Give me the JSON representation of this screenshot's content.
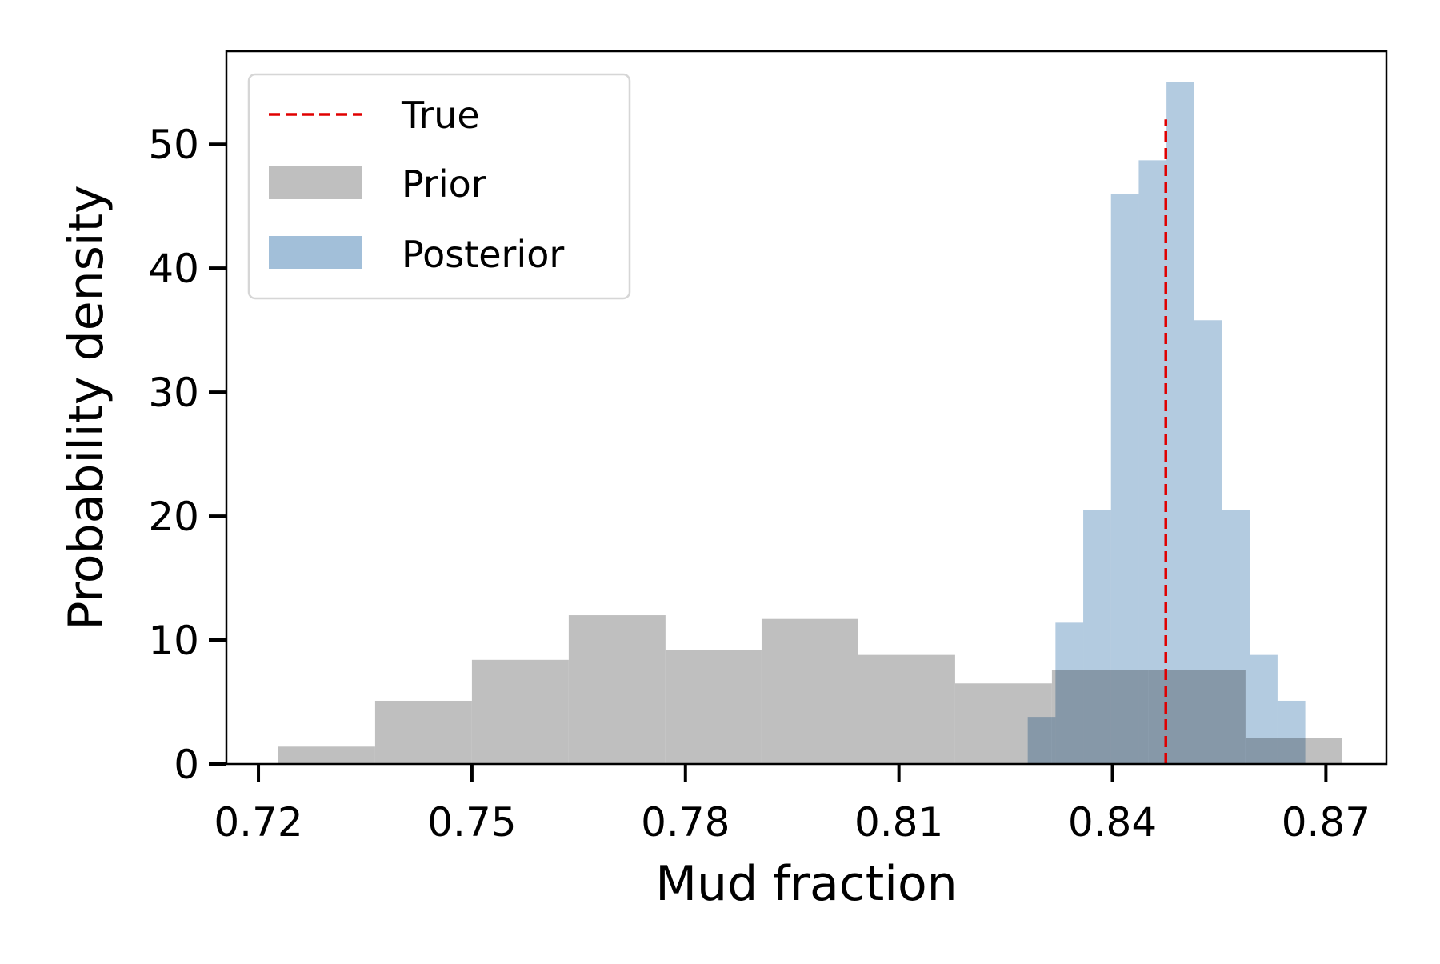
{
  "chart_data": {
    "type": "bar",
    "title": "",
    "xlabel": "Mud fraction",
    "ylabel": "Probability density",
    "xlim": [
      0.7155,
      0.8785
    ],
    "ylim": [
      0,
      57.5
    ],
    "xticks": [
      0.72,
      0.75,
      0.78,
      0.81,
      0.84,
      0.87
    ],
    "xtick_labels": [
      "0.72",
      "0.75",
      "0.78",
      "0.81",
      "0.84",
      "0.87"
    ],
    "yticks": [
      0,
      10,
      20,
      30,
      40,
      50
    ],
    "ytick_labels": [
      "0",
      "10",
      "20",
      "30",
      "40",
      "50"
    ],
    "grid": false,
    "legend_position": "top-left",
    "true_value": 0.8475,
    "series": [
      {
        "name": "Prior",
        "kind": "histogram",
        "color": "#bfbfbf",
        "bins": [
          [
            0.7228,
            0.7364,
            1.4
          ],
          [
            0.7364,
            0.75,
            5.1
          ],
          [
            0.75,
            0.7636,
            8.4
          ],
          [
            0.7636,
            0.7772,
            12.0
          ],
          [
            0.7772,
            0.7907,
            9.2
          ],
          [
            0.7907,
            0.8043,
            11.7
          ],
          [
            0.8043,
            0.8179,
            8.8
          ],
          [
            0.8179,
            0.8315,
            6.5
          ],
          [
            0.8315,
            0.8451,
            7.6
          ],
          [
            0.8451,
            0.8587,
            7.6
          ],
          [
            0.8587,
            0.8723,
            2.1
          ]
        ]
      },
      {
        "name": "Posterior",
        "kind": "histogram",
        "color": "#a2bfd9",
        "bins": [
          [
            0.8281,
            0.832,
            3.8
          ],
          [
            0.832,
            0.8359,
            11.4
          ],
          [
            0.8359,
            0.8398,
            20.5
          ],
          [
            0.8398,
            0.8437,
            46.0
          ],
          [
            0.8437,
            0.8476,
            48.7
          ],
          [
            0.8476,
            0.8515,
            55.0
          ],
          [
            0.8515,
            0.8554,
            35.8
          ],
          [
            0.8554,
            0.8593,
            20.5
          ],
          [
            0.8593,
            0.8632,
            8.8
          ],
          [
            0.8632,
            0.8671,
            5.1
          ]
        ]
      },
      {
        "name": "True",
        "kind": "vline",
        "color": "#e00000"
      }
    ]
  }
}
